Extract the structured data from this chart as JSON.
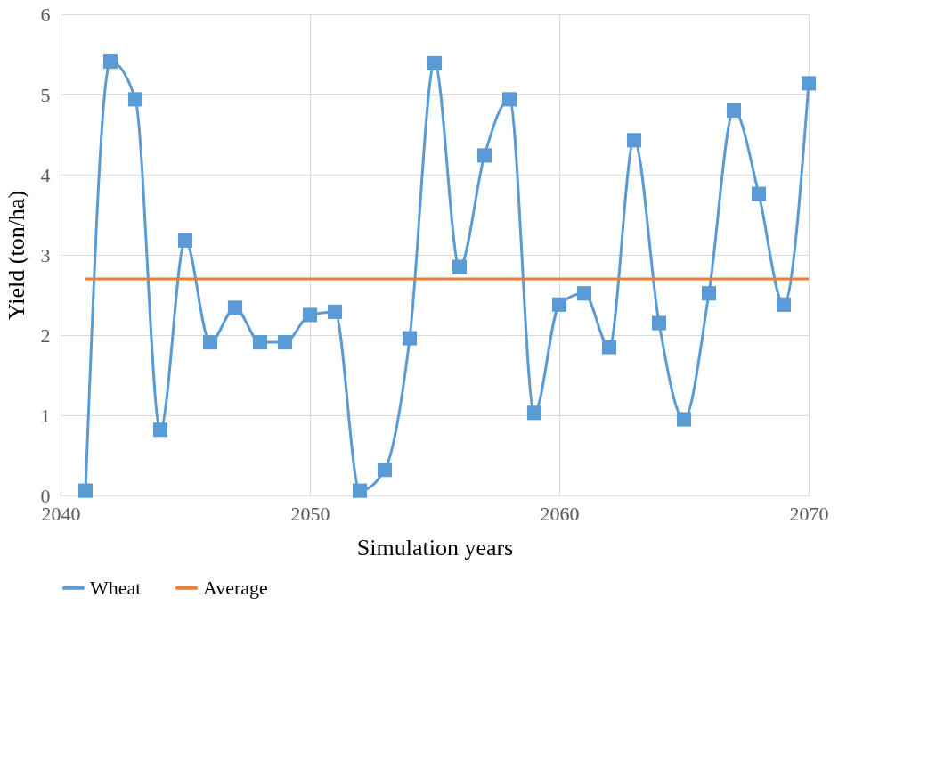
{
  "chart_data": {
    "type": "line",
    "xlabel": "Simulation years",
    "ylabel": "Yield (ton/ha)",
    "x": [
      2041,
      2042,
      2043,
      2044,
      2045,
      2046,
      2047,
      2048,
      2049,
      2050,
      2051,
      2052,
      2053,
      2054,
      2055,
      2056,
      2057,
      2058,
      2059,
      2060,
      2061,
      2062,
      2063,
      2064,
      2065,
      2066,
      2067,
      2068,
      2069,
      2070
    ],
    "series": [
      {
        "name": "Wheat",
        "color": "#5b9bd5",
        "marker": "square",
        "values": [
          0.06,
          5.41,
          4.94,
          0.82,
          3.18,
          1.91,
          2.34,
          1.91,
          1.91,
          2.25,
          2.29,
          0.06,
          0.32,
          1.96,
          5.39,
          2.85,
          4.24,
          4.94,
          1.03,
          2.38,
          2.52,
          1.85,
          4.43,
          2.15,
          0.95,
          2.52,
          4.8,
          3.76,
          2.38,
          5.14
        ]
      },
      {
        "name": "Average",
        "color": "#ed7d31",
        "marker": "none",
        "x": [
          2041,
          2070
        ],
        "values": [
          2.7,
          2.7
        ]
      }
    ],
    "xlim": [
      2040,
      2070
    ],
    "xticks": [
      2040,
      2050,
      2060,
      2070
    ],
    "ylim": [
      0,
      6
    ],
    "yticks": [
      0,
      1,
      2,
      3,
      4,
      5,
      6
    ],
    "grid": true,
    "legend": "bottom",
    "line_style": "solid"
  }
}
